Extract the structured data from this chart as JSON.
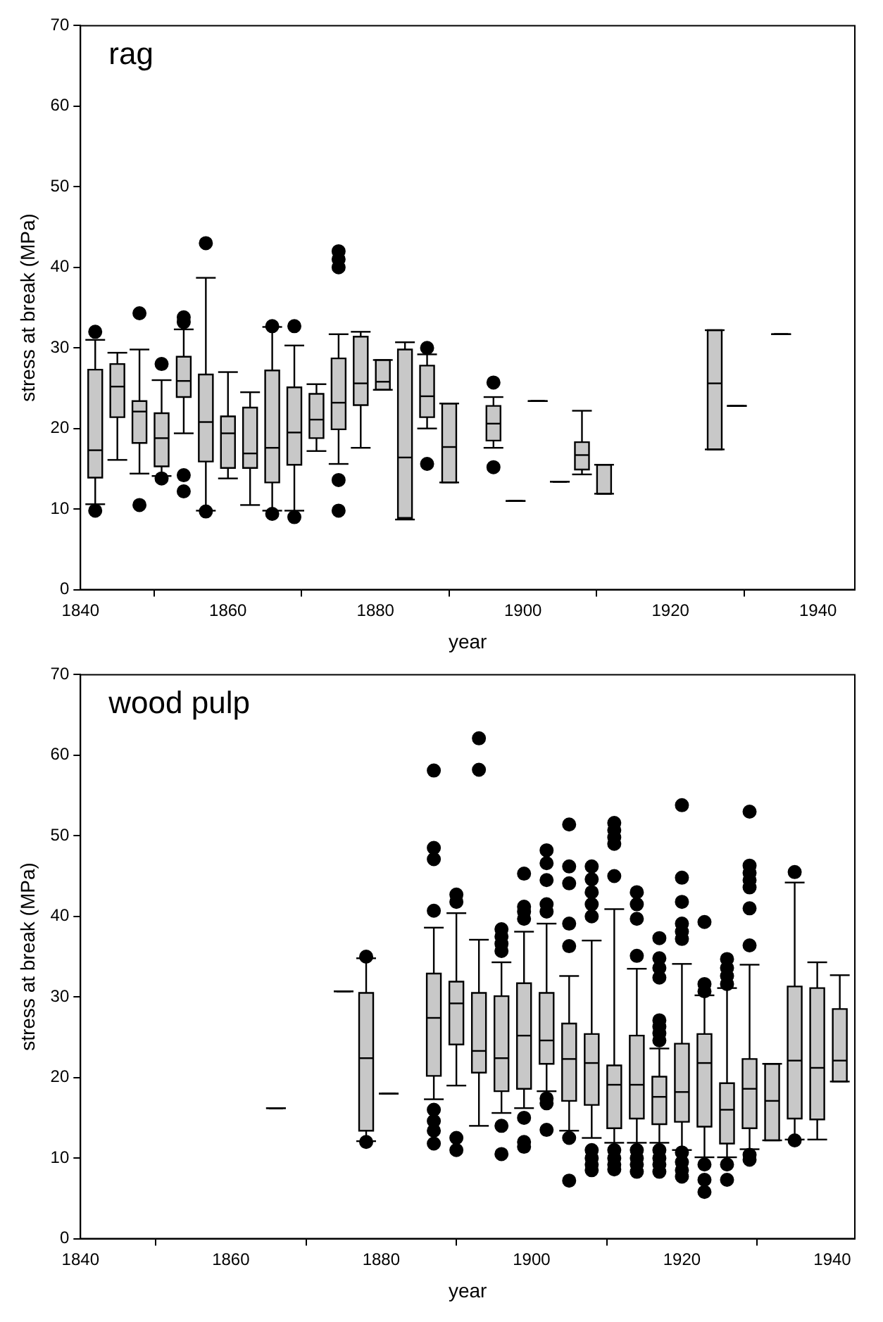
{
  "chart_data": [
    {
      "type": "box",
      "title": "rag",
      "xlabel": "year",
      "ylabel": "stress at break (MPa)",
      "color": "#c8c8c8",
      "xlim": [
        1840,
        1945
      ],
      "xticks": [
        1840,
        1860,
        1880,
        1900,
        1920,
        1940
      ],
      "ylim": [
        0,
        70
      ],
      "yticks": [
        0,
        10,
        20,
        30,
        40,
        50,
        60,
        70
      ],
      "x": [
        1842,
        1845,
        1848,
        1851,
        1854,
        1857,
        1860,
        1863,
        1866,
        1869,
        1872,
        1875,
        1878,
        1881,
        1884,
        1887,
        1890,
        1896,
        1899,
        1902,
        1905,
        1908,
        1911,
        1926,
        1929,
        1935
      ],
      "boxes": [
        {
          "low": 10.6,
          "q1": 13.9,
          "median": 17.3,
          "q3": 27.3,
          "high": 31.0,
          "outliers": [
            32.0,
            9.8
          ]
        },
        {
          "low": 16.1,
          "q1": 21.4,
          "median": 25.2,
          "q3": 28.0,
          "high": 29.4
        },
        {
          "low": 14.4,
          "q1": 18.2,
          "median": 22.1,
          "q3": 23.4,
          "high": 29.8,
          "outliers": [
            34.3,
            10.5
          ]
        },
        {
          "low": 14.1,
          "q1": 15.3,
          "median": 18.8,
          "q3": 21.9,
          "high": 26.0,
          "outliers": [
            28.0,
            13.8
          ]
        },
        {
          "low": 19.4,
          "q1": 23.9,
          "median": 25.9,
          "q3": 28.9,
          "high": 32.3,
          "outliers": [
            33.8,
            33.2,
            14.2,
            12.2
          ]
        },
        {
          "low": 9.8,
          "q1": 15.9,
          "median": 20.8,
          "q3": 26.7,
          "high": 38.7,
          "outliers": [
            43.0,
            9.7
          ]
        },
        {
          "low": 13.8,
          "q1": 15.1,
          "median": 19.4,
          "q3": 21.5,
          "high": 27.0
        },
        {
          "low": 10.5,
          "q1": 15.1,
          "median": 16.9,
          "q3": 22.6,
          "high": 24.5
        },
        {
          "low": 9.8,
          "q1": 13.3,
          "median": 17.6,
          "q3": 27.2,
          "high": 32.6,
          "outliers": [
            32.7,
            9.4
          ]
        },
        {
          "low": 9.8,
          "q1": 15.5,
          "median": 19.5,
          "q3": 25.1,
          "high": 30.3,
          "outliers": [
            32.7,
            9.0
          ]
        },
        {
          "low": 17.2,
          "q1": 18.8,
          "median": 21.1,
          "q3": 24.3,
          "high": 25.5
        },
        {
          "low": 15.6,
          "q1": 19.9,
          "median": 23.2,
          "q3": 28.7,
          "high": 31.7,
          "outliers": [
            42.0,
            41.0,
            40.0,
            13.6,
            9.8
          ]
        },
        {
          "low": 17.6,
          "q1": 22.9,
          "median": 25.6,
          "q3": 31.4,
          "high": 32.0
        },
        {
          "low": 24.8,
          "q1": 24.8,
          "median": 25.8,
          "q3": 28.5,
          "high": 28.5
        },
        {
          "low": 8.7,
          "q1": 8.9,
          "median": 16.4,
          "q3": 29.8,
          "high": 30.7
        },
        {
          "low": 20.0,
          "q1": 21.4,
          "median": 24.0,
          "q3": 27.8,
          "high": 29.2,
          "outliers": [
            30.0,
            15.6
          ]
        },
        {
          "low": 13.3,
          "q1": 13.3,
          "median": 17.7,
          "q3": 23.1,
          "high": 23.1
        },
        {
          "low": 17.6,
          "q1": 18.5,
          "median": 20.6,
          "q3": 22.8,
          "high": 23.9,
          "outliers": [
            25.7,
            15.2
          ]
        },
        {
          "low": 11.0,
          "q1": 11.0,
          "median": 11.0,
          "q3": 11.0,
          "high": 11.0
        },
        {
          "low": 23.4,
          "q1": 23.4,
          "median": 23.4,
          "q3": 23.4,
          "high": 23.4
        },
        {
          "low": 13.4,
          "q1": 13.4,
          "median": 13.4,
          "q3": 13.4,
          "high": 13.4
        },
        {
          "low": 14.3,
          "q1": 14.9,
          "median": 16.7,
          "q3": 18.3,
          "high": 22.2
        },
        {
          "low": 11.9,
          "q1": 11.9,
          "median": 11.9,
          "q3": 15.5,
          "high": 15.5
        },
        {
          "low": 17.4,
          "q1": 17.4,
          "median": 25.6,
          "q3": 32.2,
          "high": 32.2
        },
        {
          "low": 22.8,
          "q1": 22.8,
          "median": 22.8,
          "q3": 22.8,
          "high": 22.8
        },
        {
          "low": 31.7,
          "q1": 31.7,
          "median": 31.7,
          "q3": 31.7,
          "high": 31.7
        }
      ]
    },
    {
      "type": "box",
      "title": "wood pulp",
      "xlabel": "year",
      "ylabel": "stress at break (MPa)",
      "color": "#c8c8c8",
      "xlim": [
        1840,
        1943
      ],
      "xticks": [
        1840,
        1860,
        1880,
        1900,
        1920,
        1940
      ],
      "ylim": [
        0,
        70
      ],
      "yticks": [
        0,
        10,
        20,
        30,
        40,
        50,
        60,
        70
      ],
      "x": [
        1866,
        1875,
        1878,
        1881,
        1887,
        1890,
        1893,
        1896,
        1899,
        1902,
        1905,
        1908,
        1911,
        1914,
        1917,
        1920,
        1923,
        1926,
        1929,
        1932,
        1935,
        1938,
        1941
      ],
      "boxes": [
        {
          "low": 16.2,
          "q1": 16.2,
          "median": 16.2,
          "q3": 16.2,
          "high": 16.2
        },
        {
          "low": 30.7,
          "q1": 30.7,
          "median": 30.7,
          "q3": 30.7,
          "high": 30.7
        },
        {
          "low": 12.1,
          "q1": 13.4,
          "median": 22.4,
          "q3": 30.5,
          "high": 34.8,
          "outliers": [
            35.0,
            12.0
          ]
        },
        {
          "low": 18.0,
          "q1": 18.0,
          "median": 18.0,
          "q3": 18.0,
          "high": 18.0
        },
        {
          "low": 17.3,
          "q1": 20.2,
          "median": 27.4,
          "q3": 32.9,
          "high": 38.6,
          "outliers": [
            58.1,
            48.5,
            47.1,
            40.7,
            16.0,
            14.6,
            13.4,
            11.8
          ]
        },
        {
          "low": 19.0,
          "q1": 24.1,
          "median": 29.2,
          "q3": 31.9,
          "high": 40.4,
          "outliers": [
            42.7,
            41.8,
            12.5,
            11.0
          ]
        },
        {
          "low": 14.0,
          "q1": 20.6,
          "median": 23.3,
          "q3": 30.5,
          "high": 37.1,
          "outliers": [
            62.1,
            58.2
          ]
        },
        {
          "low": 15.6,
          "q1": 18.3,
          "median": 22.4,
          "q3": 30.1,
          "high": 34.3,
          "outliers": [
            38.4,
            37.5,
            36.6,
            35.7,
            14.0,
            10.5
          ]
        },
        {
          "low": 16.2,
          "q1": 18.6,
          "median": 25.2,
          "q3": 31.7,
          "high": 38.1,
          "outliers": [
            45.3,
            41.2,
            40.6,
            39.7,
            15.0,
            12.0,
            11.4
          ]
        },
        {
          "low": 18.3,
          "q1": 21.7,
          "median": 24.6,
          "q3": 30.5,
          "high": 39.1,
          "outliers": [
            48.2,
            46.6,
            44.5,
            41.5,
            40.6,
            17.4,
            16.8,
            13.5
          ]
        },
        {
          "low": 13.4,
          "q1": 17.1,
          "median": 22.3,
          "q3": 26.7,
          "high": 32.6,
          "outliers": [
            51.4,
            46.2,
            44.1,
            39.1,
            36.3,
            12.5,
            7.2
          ]
        },
        {
          "low": 12.5,
          "q1": 16.6,
          "median": 21.8,
          "q3": 25.4,
          "high": 37.0,
          "outliers": [
            46.2,
            44.6,
            43.0,
            41.5,
            40.0,
            11.0,
            10.0,
            9.2,
            8.5
          ]
        },
        {
          "low": 11.9,
          "q1": 13.7,
          "median": 19.1,
          "q3": 21.5,
          "high": 40.9,
          "outliers": [
            51.6,
            50.7,
            49.8,
            49.0,
            45.0,
            11.0,
            10.0,
            9.2,
            8.6
          ]
        },
        {
          "low": 11.9,
          "q1": 14.9,
          "median": 19.1,
          "q3": 25.2,
          "high": 33.5,
          "outliers": [
            43.0,
            41.5,
            39.7,
            35.1,
            11.0,
            10.0,
            9.2,
            8.3
          ]
        },
        {
          "low": 11.9,
          "q1": 14.2,
          "median": 17.6,
          "q3": 20.1,
          "high": 23.6,
          "outliers": [
            37.3,
            34.8,
            33.6,
            32.4,
            27.1,
            26.3,
            25.5,
            24.6,
            11.0,
            10.0,
            9.2,
            8.3
          ]
        },
        {
          "low": 11.0,
          "q1": 14.5,
          "median": 18.2,
          "q3": 24.2,
          "high": 34.1,
          "outliers": [
            53.8,
            44.8,
            41.8,
            39.1,
            38.1,
            37.2,
            10.7,
            9.5,
            8.5,
            7.7
          ]
        },
        {
          "low": 10.1,
          "q1": 13.9,
          "median": 21.8,
          "q3": 25.4,
          "high": 30.2,
          "outliers": [
            39.3,
            31.6,
            30.7,
            9.2,
            7.3,
            5.8
          ]
        },
        {
          "low": 10.1,
          "q1": 11.8,
          "median": 16.0,
          "q3": 19.3,
          "high": 31.1,
          "outliers": [
            34.7,
            33.6,
            32.6,
            31.6,
            9.2,
            7.3
          ]
        },
        {
          "low": 11.1,
          "q1": 13.7,
          "median": 18.6,
          "q3": 22.3,
          "high": 34.0,
          "outliers": [
            53.0,
            46.3,
            45.4,
            44.5,
            43.6,
            41.0,
            36.4,
            10.4,
            9.8
          ]
        },
        {
          "low": 12.2,
          "q1": 12.2,
          "median": 17.1,
          "q3": 21.7,
          "high": 21.7
        },
        {
          "low": 12.3,
          "q1": 14.9,
          "median": 22.1,
          "q3": 31.3,
          "high": 44.2,
          "outliers": [
            45.5,
            12.2
          ]
        },
        {
          "low": 12.3,
          "q1": 14.8,
          "median": 21.2,
          "q3": 31.1,
          "high": 34.3
        },
        {
          "low": 19.5,
          "q1": 19.5,
          "median": 22.1,
          "q3": 28.5,
          "high": 32.7
        }
      ]
    }
  ]
}
